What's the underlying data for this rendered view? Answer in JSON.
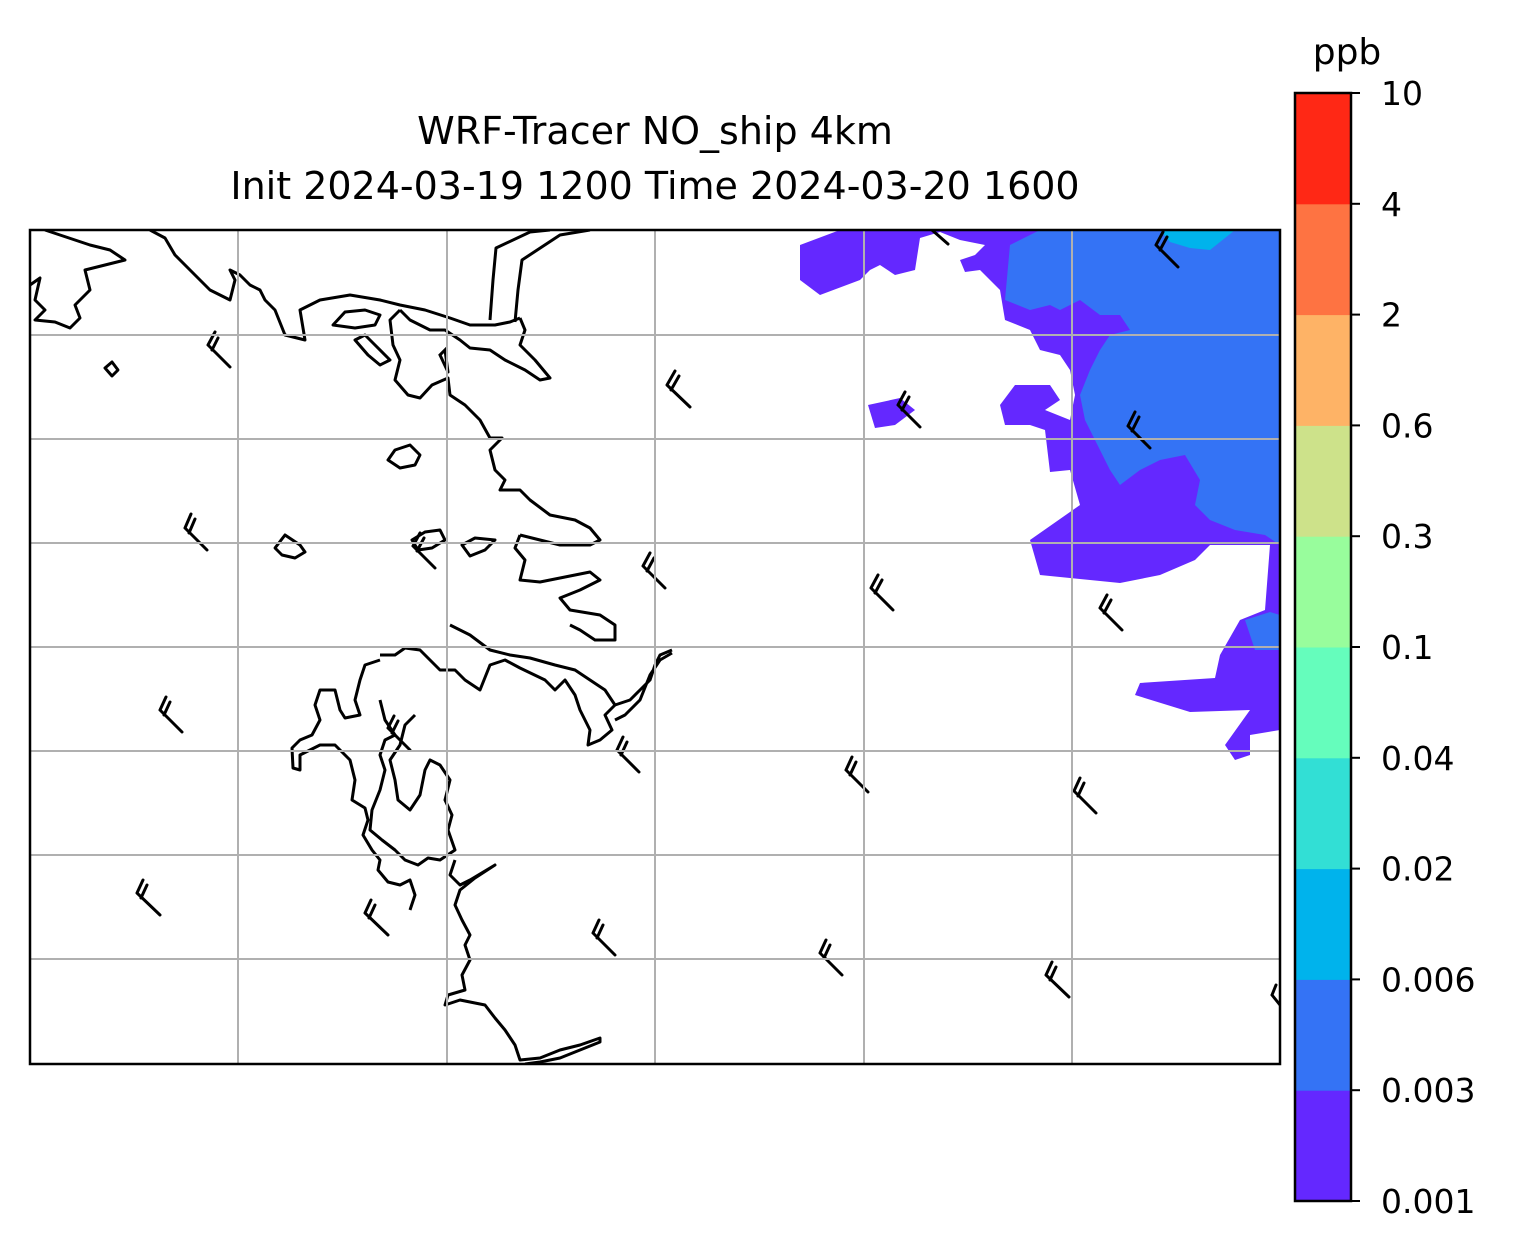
{
  "title": {
    "line1": "WRF-Tracer NO_ship 4km",
    "line2": "Init 2024-03-19 1200 Time 2024-03-20 1600"
  },
  "colorbar": {
    "unit": "ppb",
    "levels": [
      "0.001",
      "0.003",
      "0.006",
      "0.02",
      "0.04",
      "0.1",
      "0.3",
      "0.6",
      "2",
      "4",
      "10"
    ],
    "colors": [
      "#6428ff",
      "#3473f5",
      "#00b3ec",
      "#32dfd5",
      "#65fdbc",
      "#98fd9c",
      "#cde28a",
      "#feb366",
      "#fe7342",
      "#ff2815"
    ]
  },
  "chart_data": {
    "type": "heatmap",
    "variable": "NO_ship tracer concentration",
    "unit": "ppb",
    "levels": [
      0.001,
      0.003,
      0.006,
      0.02,
      0.04,
      0.1,
      0.3,
      0.6,
      2,
      4,
      10
    ],
    "grid": true,
    "overlays": [
      "coastlines",
      "wind barbs"
    ],
    "colorbar_placement": "right"
  }
}
